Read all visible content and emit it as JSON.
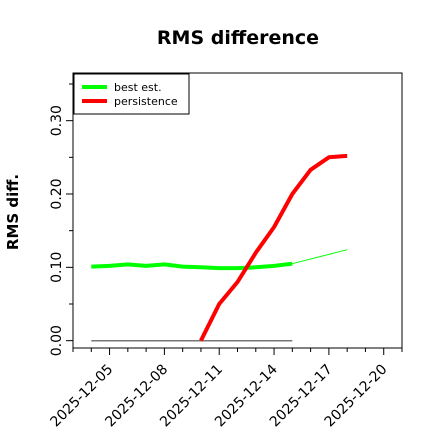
{
  "chart_data": {
    "type": "line",
    "title": "RMS difference",
    "xlabel": "",
    "ylabel": "RMS diff.",
    "xlim": [
      "2025-12-03",
      "2025-12-21"
    ],
    "ylim": [
      -0.01,
      0.365
    ],
    "x_ticks": [
      "2025-12-05",
      "2025-12-08",
      "2025-12-11",
      "2025-12-14",
      "2025-12-17",
      "2025-12-20"
    ],
    "y_major_ticks": [
      0.0,
      0.1,
      0.2,
      0.3
    ],
    "y_tick_labels": [
      "0.00",
      "0.10",
      "0.20",
      "0.30"
    ],
    "y_minor_ticks": [
      0.05,
      0.15,
      0.25,
      0.35
    ],
    "grid": false,
    "legend_position": "top-left",
    "series": [
      {
        "name": "best est.",
        "color": "#00ff00",
        "x": [
          "2025-12-04",
          "2025-12-05",
          "2025-12-06",
          "2025-12-07",
          "2025-12-08",
          "2025-12-09",
          "2025-12-10",
          "2025-12-11",
          "2025-12-12",
          "2025-12-13",
          "2025-12-14",
          "2025-12-15"
        ],
        "values": [
          0.101,
          0.102,
          0.104,
          0.102,
          0.104,
          0.101,
          0.1,
          0.099,
          0.099,
          0.1,
          0.102,
          0.105
        ]
      },
      {
        "name": "persistence",
        "color": "#ff0000",
        "x": [
          "2025-12-10",
          "2025-12-11",
          "2025-12-12",
          "2025-12-13",
          "2025-12-14",
          "2025-12-15",
          "2025-12-16",
          "2025-12-17",
          "2025-12-18"
        ],
        "values": [
          0.0,
          0.05,
          0.08,
          0.12,
          0.155,
          0.2,
          0.233,
          0.25,
          0.252
        ]
      }
    ],
    "extrapolation": {
      "color": "#00ff00",
      "x": [
        "2025-12-15",
        "2025-12-18"
      ],
      "values": [
        0.105,
        0.124
      ]
    },
    "reference_line": {
      "color": "#777777",
      "x": [
        "2025-12-04",
        "2025-12-15"
      ],
      "values": [
        0.0,
        0.0
      ]
    }
  }
}
